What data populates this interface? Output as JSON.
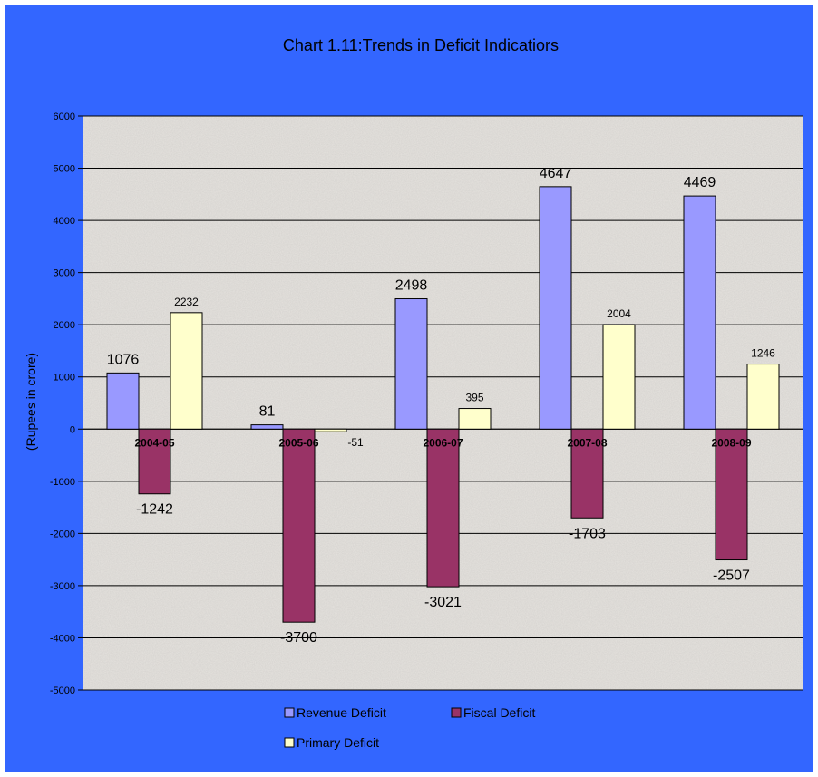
{
  "chart_data": {
    "type": "bar",
    "title": "Chart 1.11:Trends in Deficit Indicatiors",
    "ylabel": "(Rupees in crore)",
    "xlabel": "",
    "categories": [
      "2004-05",
      "2005-06",
      "2006-07",
      "2007-08",
      "2008-09"
    ],
    "series": [
      {
        "name": "Revenue Deficit",
        "color": "#9999ff",
        "values": [
          1076,
          81,
          2498,
          4647,
          4469
        ]
      },
      {
        "name": "Fiscal Deficit",
        "color": "#993366",
        "values": [
          -1242,
          -3700,
          -3021,
          -1703,
          -2507
        ]
      },
      {
        "name": "Primary Deficit",
        "color": "#ffffcc",
        "values": [
          2232,
          -51,
          395,
          2004,
          1246
        ]
      }
    ],
    "ylim": [
      -5000,
      6000
    ],
    "yticks": [
      -5000,
      -4000,
      -3000,
      -2000,
      -1000,
      0,
      1000,
      2000,
      3000,
      4000,
      5000,
      6000
    ],
    "grid": true,
    "legend_position": "bottom",
    "background_color": "#3366ff",
    "plot_background": "#e6e3df"
  }
}
